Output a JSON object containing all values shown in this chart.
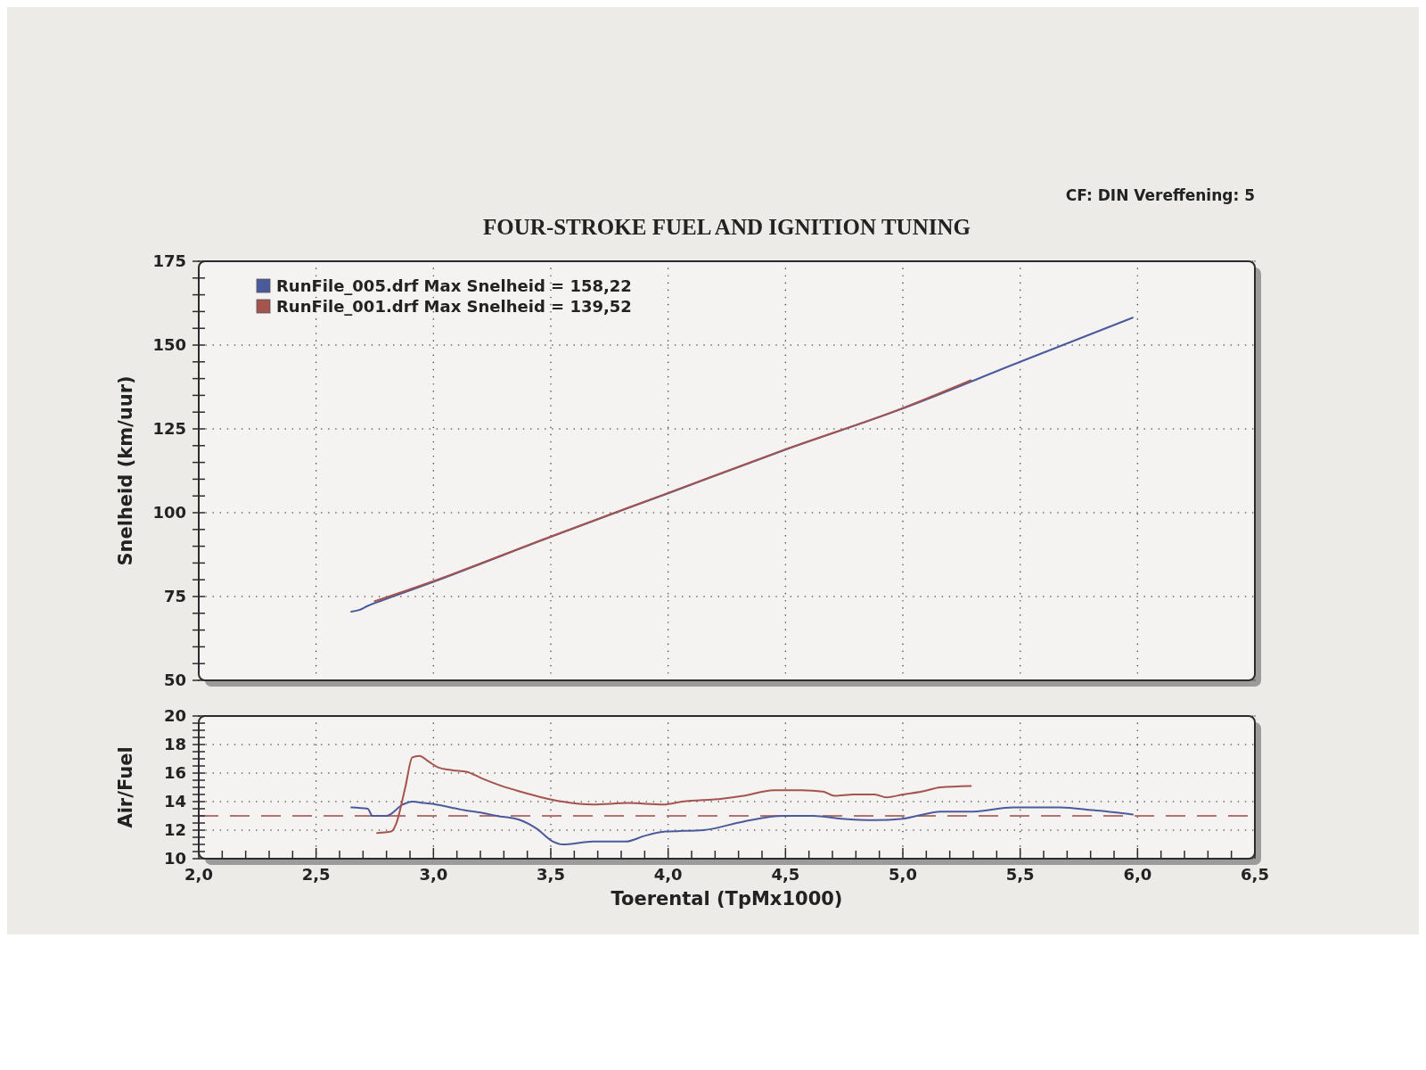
{
  "chart_data": [
    {
      "type": "line",
      "title": "FOUR-STROKE FUEL AND IGNITION TUNING",
      "ylabel": "Snelheid (km/uur)",
      "annotations": [
        "CF: DIN Vereffening: 5"
      ],
      "series": [
        {
          "name": "RunFile_005.drf Max Snelheid = 158,22",
          "color": "#4b5a9c",
          "x": [
            2.65,
            2.68,
            2.72,
            2.8,
            3.0,
            3.5,
            4.0,
            4.5,
            5.0,
            5.5,
            5.98
          ],
          "values": [
            70.5,
            70.9,
            72.2,
            74.3,
            79.4,
            92.8,
            105.8,
            118.8,
            131.1,
            145.0,
            158.2
          ]
        },
        {
          "name": "RunFile_001.drf Max Snelheid = 139,52",
          "color": "#a4534f",
          "x": [
            2.75,
            3.0,
            3.5,
            4.0,
            4.5,
            5.0,
            5.29
          ],
          "values": [
            73.6,
            79.6,
            92.9,
            105.9,
            118.9,
            131.2,
            139.5
          ]
        }
      ],
      "xlim": [
        2,
        6.5
      ],
      "xticks": [
        2,
        2.5,
        3,
        3.5,
        4,
        4.5,
        5,
        5.5,
        6,
        6.5
      ],
      "ylim": [
        50,
        175
      ],
      "yticks": [
        50,
        {
          "value": 55,
          "label": null
        },
        {
          "value": 60,
          "label": null
        },
        {
          "value": 65,
          "label": null
        },
        {
          "value": 70,
          "label": null
        },
        75,
        {
          "value": 80,
          "label": null
        },
        {
          "value": 85,
          "label": null
        },
        {
          "value": 90,
          "label": null
        },
        {
          "value": 95,
          "label": null
        },
        100,
        {
          "value": 105,
          "label": null
        },
        {
          "value": 110,
          "label": null
        },
        {
          "value": 115,
          "label": null
        },
        {
          "value": 120,
          "label": null
        },
        125,
        {
          "value": 130,
          "label": null
        },
        {
          "value": 135,
          "label": null
        },
        {
          "value": 140,
          "label": null
        },
        {
          "value": 145,
          "label": null
        },
        150,
        {
          "value": 155,
          "label": null
        },
        {
          "value": 160,
          "label": null
        },
        {
          "value": 165,
          "label": null
        },
        {
          "value": 170,
          "label": null
        },
        175
      ],
      "grid": true,
      "legend": "top left",
      "tick_labels": "y"
    },
    {
      "type": "line",
      "xlabel": "Toerental (TpMx1000)",
      "ylabel": "Air/Fuel",
      "series": [
        {
          "color": "#4b5a9c",
          "x": [
            2.65,
            2.72,
            2.74,
            2.8,
            2.87,
            2.91,
            2.96,
            3.01,
            3.13,
            3.21,
            3.27,
            3.37,
            3.44,
            3.51,
            3.55,
            3.68,
            3.82,
            3.9,
            3.99,
            4.15,
            4.32,
            4.49,
            4.62,
            4.74,
            4.88,
            5.0,
            5.06,
            5.16,
            5.3,
            5.47,
            5.67,
            5.81,
            5.98
          ],
          "values": [
            13.6,
            13.5,
            13.0,
            13.0,
            13.8,
            14.0,
            13.9,
            13.8,
            13.4,
            13.2,
            13.0,
            12.7,
            12.1,
            11.2,
            11.0,
            11.2,
            11.2,
            11.6,
            11.9,
            12.0,
            12.6,
            13.0,
            13.0,
            12.8,
            12.7,
            12.8,
            13.0,
            13.3,
            13.3,
            13.6,
            13.6,
            13.4,
            13.1
          ]
        },
        {
          "color": "#a4534f",
          "x": [
            2.76,
            2.82,
            2.84,
            2.88,
            2.91,
            2.94,
            2.98,
            3.02,
            3.08,
            3.14,
            3.21,
            3.29,
            3.37,
            3.46,
            3.55,
            3.68,
            3.83,
            3.98,
            4.06,
            4.23,
            4.32,
            4.45,
            4.57,
            4.66,
            4.71,
            4.79,
            4.88,
            4.93,
            5.0,
            5.08,
            5.16,
            5.29
          ],
          "values": [
            11.8,
            11.9,
            12.4,
            15.0,
            17.1,
            17.2,
            16.8,
            16.4,
            16.2,
            16.1,
            15.6,
            15.1,
            14.7,
            14.3,
            14.0,
            13.8,
            13.9,
            13.8,
            14.0,
            14.2,
            14.4,
            14.8,
            14.8,
            14.7,
            14.4,
            14.5,
            14.5,
            14.3,
            14.5,
            14.7,
            15.0,
            15.1
          ]
        }
      ],
      "ref_lines": [
        {
          "axis": "y",
          "value": 13,
          "color": "#b5716b",
          "line_style": "dashed"
        }
      ],
      "xlim": [
        2,
        6.5
      ],
      "xticks": [
        {
          "value": 2,
          "label": "2,0"
        },
        {
          "value": 2.1,
          "label": null
        },
        {
          "value": 2.2,
          "label": null
        },
        {
          "value": 2.3,
          "label": null
        },
        {
          "value": 2.4,
          "label": null
        },
        {
          "value": 2.5,
          "label": "2,5"
        },
        {
          "value": 2.6,
          "label": null
        },
        {
          "value": 2.7,
          "label": null
        },
        {
          "value": 2.8,
          "label": null
        },
        {
          "value": 2.9,
          "label": null
        },
        {
          "value": 3,
          "label": "3,0"
        },
        {
          "value": 3.1,
          "label": null
        },
        {
          "value": 3.2,
          "label": null
        },
        {
          "value": 3.3,
          "label": null
        },
        {
          "value": 3.4,
          "label": null
        },
        {
          "value": 3.5,
          "label": "3,5"
        },
        {
          "value": 3.6,
          "label": null
        },
        {
          "value": 3.7,
          "label": null
        },
        {
          "value": 3.8,
          "label": null
        },
        {
          "value": 3.9,
          "label": null
        },
        {
          "value": 4,
          "label": "4,0"
        },
        {
          "value": 4.1,
          "label": null
        },
        {
          "value": 4.2,
          "label": null
        },
        {
          "value": 4.3,
          "label": null
        },
        {
          "value": 4.4,
          "label": null
        },
        {
          "value": 4.5,
          "label": "4,5"
        },
        {
          "value": 4.6,
          "label": null
        },
        {
          "value": 4.7,
          "label": null
        },
        {
          "value": 4.8,
          "label": null
        },
        {
          "value": 4.9,
          "label": null
        },
        {
          "value": 5,
          "label": "5,0"
        },
        {
          "value": 5.1,
          "label": null
        },
        {
          "value": 5.2,
          "label": null
        },
        {
          "value": 5.3,
          "label": null
        },
        {
          "value": 5.4,
          "label": null
        },
        {
          "value": 5.5,
          "label": "5,5"
        },
        {
          "value": 5.6,
          "label": null
        },
        {
          "value": 5.7,
          "label": null
        },
        {
          "value": 5.8,
          "label": null
        },
        {
          "value": 5.9,
          "label": null
        },
        {
          "value": 6,
          "label": "6,0"
        },
        {
          "value": 6.1,
          "label": null
        },
        {
          "value": 6.2,
          "label": null
        },
        {
          "value": 6.3,
          "label": null
        },
        {
          "value": 6.4,
          "label": null
        },
        {
          "value": 6.5,
          "label": "6,5"
        }
      ],
      "ylim": [
        10,
        20
      ],
      "yticks": [
        10,
        {
          "value": 10.5,
          "label": null
        },
        {
          "value": 11,
          "label": null
        },
        {
          "value": 11.5,
          "label": null
        },
        12,
        {
          "value": 12.5,
          "label": null
        },
        {
          "value": 13,
          "label": null
        },
        {
          "value": 13.5,
          "label": null
        },
        14,
        {
          "value": 14.5,
          "label": null
        },
        {
          "value": 15,
          "label": null
        },
        {
          "value": 15.5,
          "label": null
        },
        16,
        {
          "value": 16.5,
          "label": null
        },
        {
          "value": 17,
          "label": null
        },
        {
          "value": 17.5,
          "label": null
        },
        18,
        {
          "value": 18.5,
          "label": null
        },
        {
          "value": 19,
          "label": null
        },
        {
          "value": 19.5,
          "label": null
        },
        20
      ],
      "grid": true
    }
  ]
}
